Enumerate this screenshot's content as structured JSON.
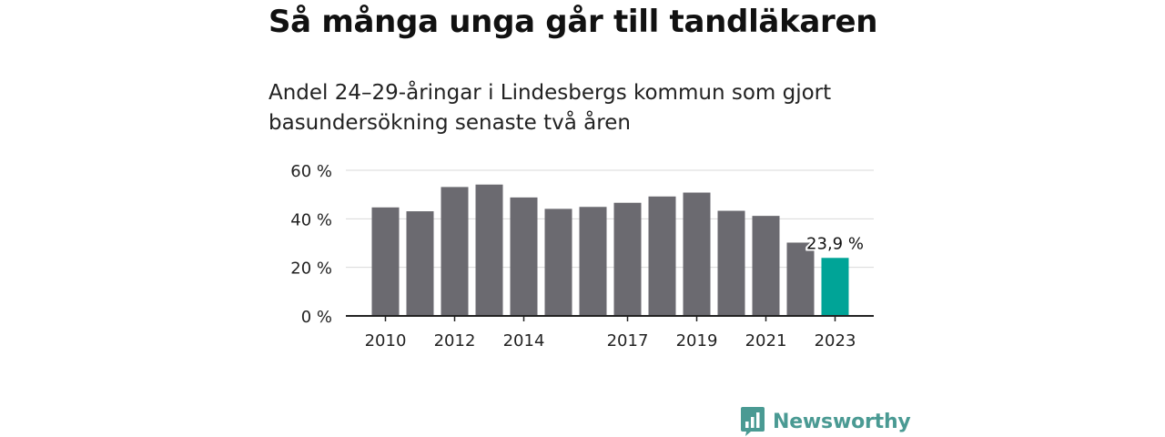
{
  "title": "Så många unga går till tandläkaren",
  "subtitle": "Andel 24–29-åringar i Lindesbergs kommun som gjort basundersökning senaste två åren",
  "brand": {
    "name": "Newsworthy",
    "icon": "newsworthy-logo-icon",
    "color": "#4a9a93"
  },
  "chart_data": {
    "type": "bar",
    "categories": [
      "2010",
      "2011",
      "2012",
      "2013",
      "2014",
      "2015",
      "2016",
      "2017",
      "2018",
      "2019",
      "2020",
      "2021",
      "2022",
      "2023"
    ],
    "x_tick_labels": [
      "2010",
      "",
      "2012",
      "",
      "2014",
      "",
      "",
      "2017",
      "",
      "2019",
      "",
      "2021",
      "",
      "2023"
    ],
    "values": [
      44.7,
      43.1,
      53.1,
      54.1,
      48.8,
      44.1,
      44.9,
      46.6,
      49.2,
      50.8,
      43.3,
      41.2,
      30.2,
      23.9
    ],
    "ylim": [
      0,
      60
    ],
    "y_ticks": [
      0,
      20,
      40,
      60
    ],
    "y_tick_labels": [
      "0 %",
      "20 %",
      "40 %",
      "60 %"
    ],
    "grid": true,
    "highlight_index": 13,
    "highlight_label": "23,9 %",
    "bar_color": "#6b6a70",
    "highlight_color": "#00a497",
    "xlabel": "",
    "ylabel": ""
  }
}
